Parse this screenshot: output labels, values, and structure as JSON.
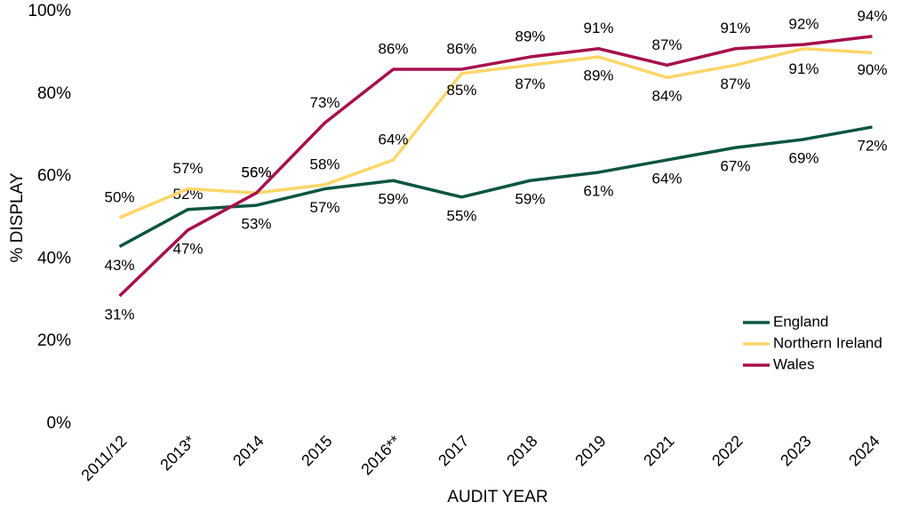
{
  "chart_data": {
    "type": "line",
    "xlabel": "AUDIT YEAR",
    "ylabel": "% DISPLAY",
    "categories": [
      "2011/12",
      "2013*",
      "2014",
      "2015",
      "2016**",
      "2017",
      "2018",
      "2019",
      "2021",
      "2022",
      "2023",
      "2024"
    ],
    "series": [
      {
        "name": "England",
        "color": "#0b5543",
        "values": [
          43,
          52,
          53,
          57,
          59,
          55,
          59,
          61,
          64,
          67,
          69,
          72
        ],
        "value_labels": [
          "43%",
          "52%",
          "53%",
          "57%",
          "59%",
          "55%",
          "59%",
          "61%",
          "64%",
          "67%",
          "69%",
          "72%"
        ]
      },
      {
        "name": "Northern Ireland",
        "color": "#fdd668",
        "values": [
          50,
          57,
          56,
          58,
          64,
          85,
          87,
          89,
          84,
          87,
          91,
          90
        ],
        "value_labels": [
          "50%",
          "57%",
          "56%",
          "58%",
          "64%",
          "85%",
          "87%",
          "89%",
          "84%",
          "87%",
          "91%",
          "90%"
        ]
      },
      {
        "name": "Wales",
        "color": "#a7104e",
        "values": [
          31,
          47,
          56,
          73,
          86,
          86,
          89,
          91,
          87,
          91,
          92,
          94
        ],
        "value_labels": [
          "31%",
          "47%",
          "56%",
          "73%",
          "86%",
          "86%",
          "89%",
          "91%",
          "87%",
          "91%",
          "92%",
          "94%"
        ]
      }
    ],
    "ylim": [
      0,
      100
    ],
    "yticks": [
      {
        "value": 0,
        "label": "0%"
      },
      {
        "value": 20,
        "label": "20%"
      },
      {
        "value": 40,
        "label": "40%"
      },
      {
        "value": 60,
        "label": "60%"
      },
      {
        "value": 80,
        "label": "80%"
      },
      {
        "value": 100,
        "label": "100%"
      }
    ],
    "grid": false,
    "legend": "lower right"
  }
}
